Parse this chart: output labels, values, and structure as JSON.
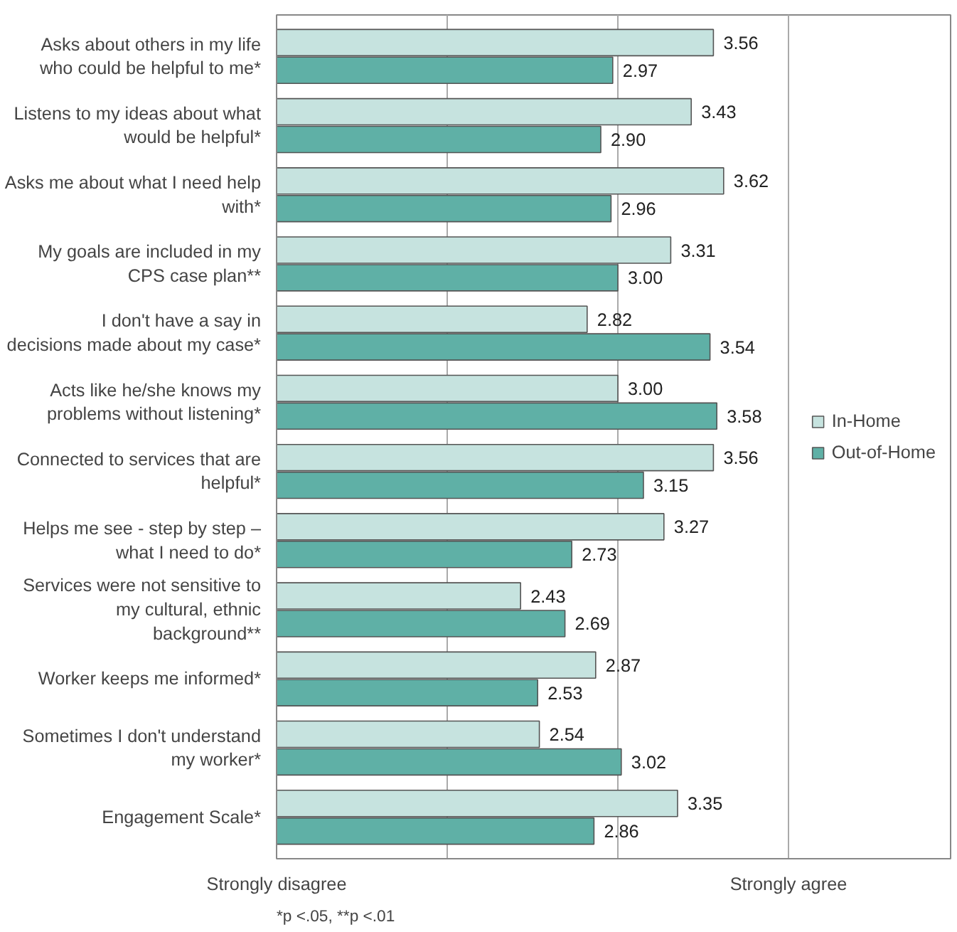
{
  "chart_data": {
    "type": "bar",
    "orientation": "horizontal",
    "categories": [
      "Asks about others in my life who could be helpful to me*",
      "Listens to my ideas about what would be helpful*",
      "Asks me about what I need help with*",
      "My goals are included in my CPS case plan**",
      "I don't have a say in decisions made about my case*",
      "Acts like he/she knows my problems without listening*",
      "Connected to services that are helpful*",
      "Helps me see - step by step – what I need to do*",
      "Services were not sensitive to my cultural, ethnic background**",
      "Worker keeps me informed*",
      "Sometimes I don't understand my worker*",
      "Engagement Scale*"
    ],
    "series": [
      {
        "name": "In-Home",
        "color": "#c6e3df",
        "values": [
          3.56,
          3.43,
          3.62,
          3.31,
          2.82,
          3.0,
          3.56,
          3.27,
          2.43,
          2.87,
          2.54,
          3.35
        ],
        "value_labels": [
          "3.56",
          "3.43",
          "3.62",
          "3.31",
          "2.82",
          "3.00",
          "3.56",
          "3.27",
          "2.43",
          "2.87",
          "2.54",
          "3.35"
        ]
      },
      {
        "name": "Out-of-Home",
        "color": "#5fb0a6",
        "values": [
          2.97,
          2.9,
          2.96,
          3.0,
          3.54,
          3.58,
          3.15,
          2.73,
          2.69,
          2.53,
          3.02,
          2.86
        ],
        "value_labels": [
          "2.97",
          "2.90",
          "2.96",
          "3.00",
          "3.54",
          "3.58",
          "3.15",
          "2.73",
          "2.69",
          "2.53",
          "3.02",
          "2.86"
        ]
      }
    ],
    "xlim": [
      1,
      4.95
    ],
    "xticks": [
      {
        "value": 1,
        "label": null
      },
      {
        "value": 2,
        "label": null
      },
      {
        "value": 3,
        "label": null
      },
      {
        "value": 4,
        "label": null
      }
    ],
    "grid": "x",
    "legend": "right",
    "annotations": [
      "Strongly disagree",
      "Strongly agree",
      "*p <.05, **p <.01"
    ]
  }
}
